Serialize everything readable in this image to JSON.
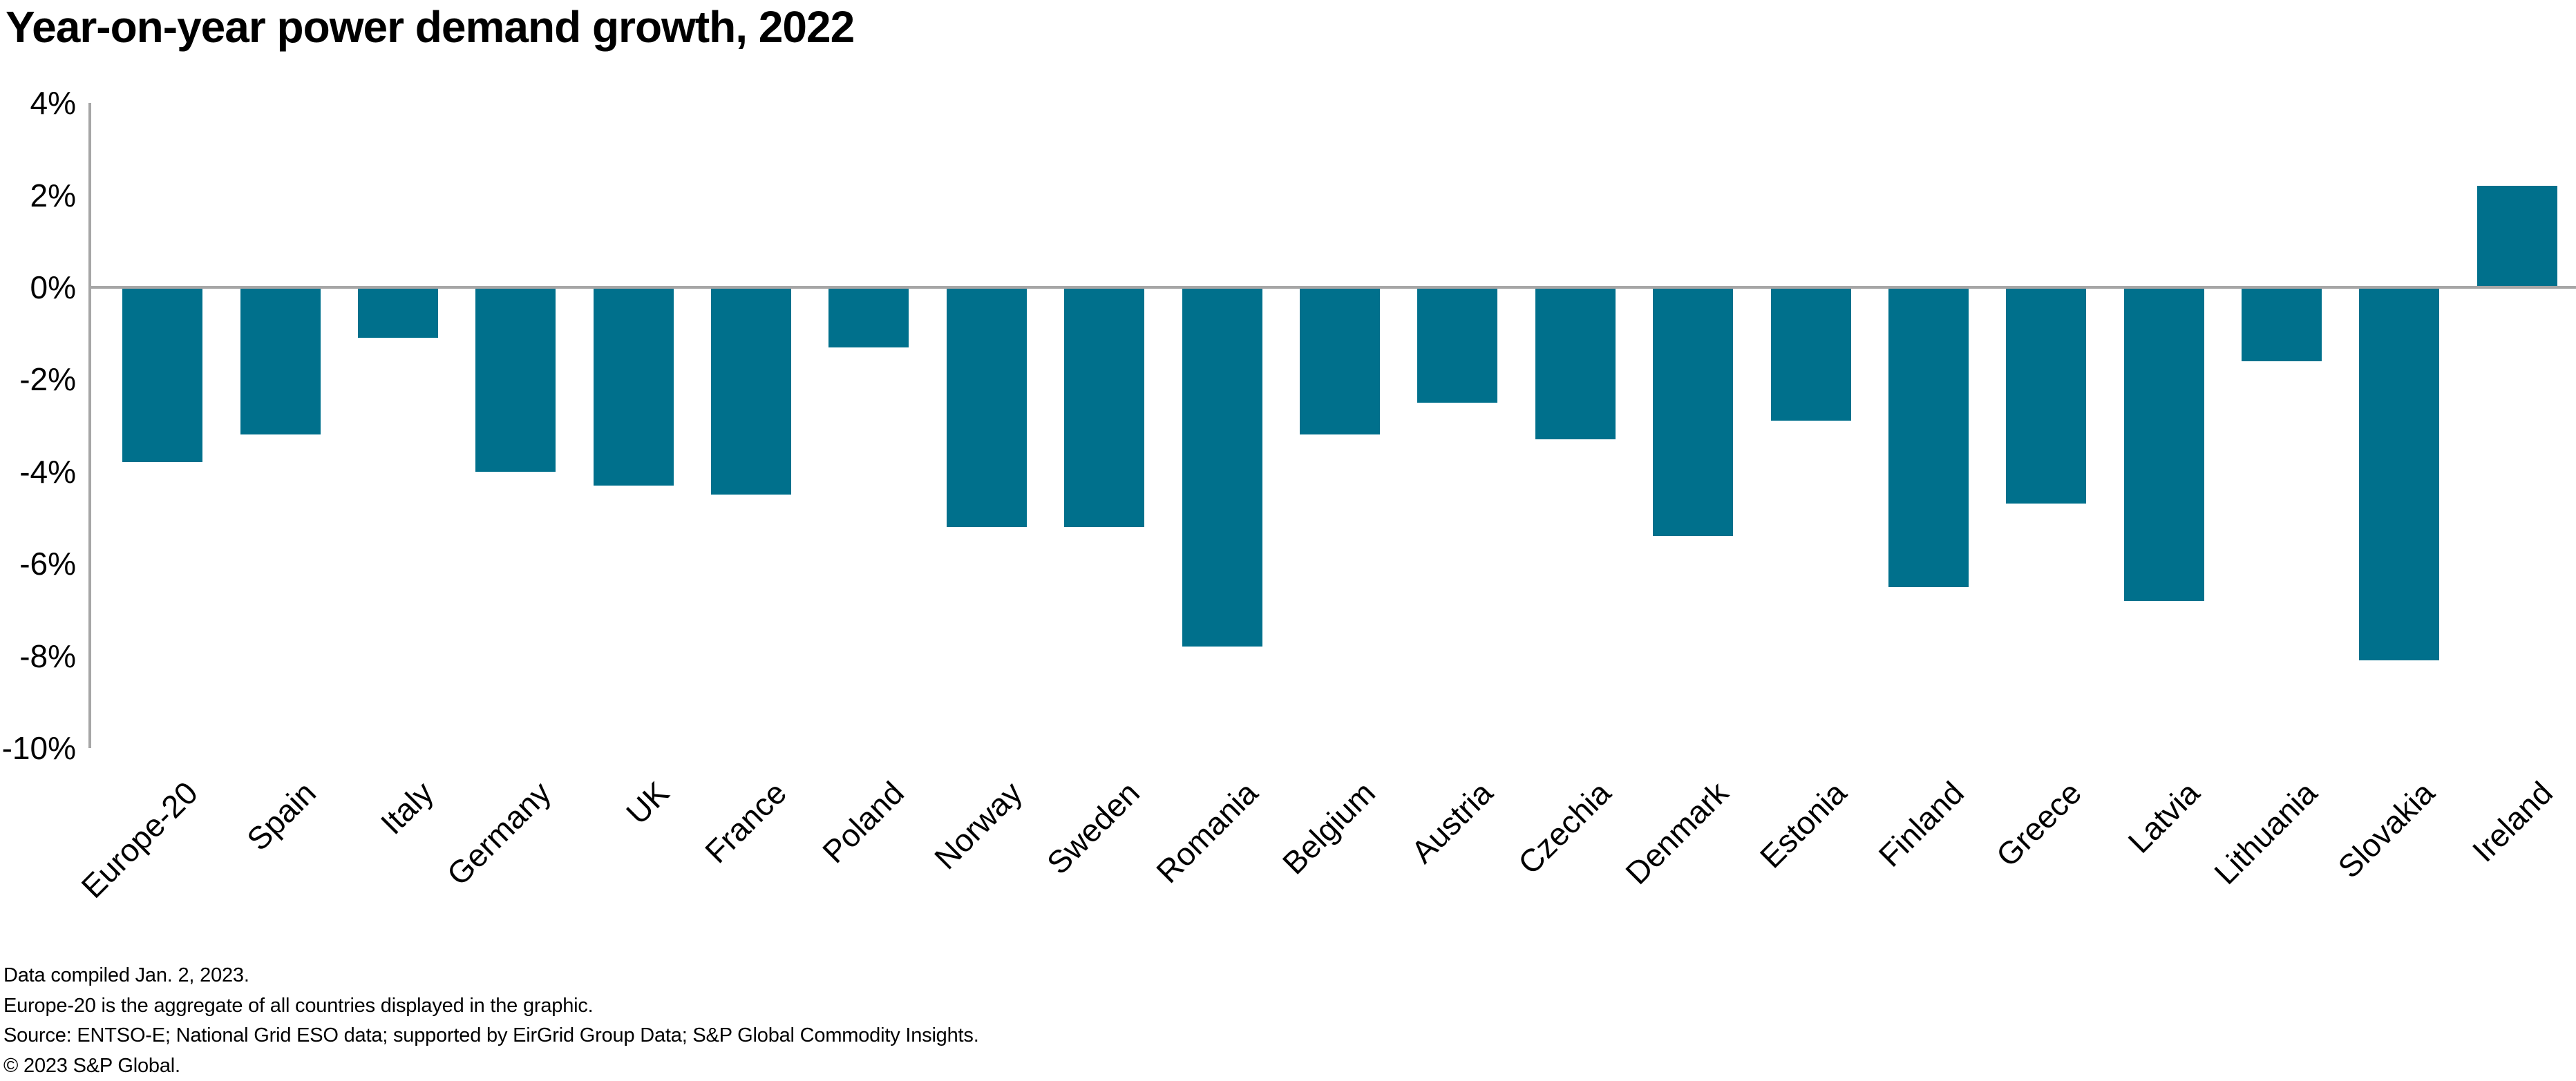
{
  "page": {
    "background": "#ffffff",
    "text_color": "#000000"
  },
  "chart_data": {
    "type": "bar",
    "title": "Year-on-year power demand growth, 2022",
    "categories": [
      "Europe-20",
      "Spain",
      "Italy",
      "Germany",
      "UK",
      "France",
      "Poland",
      "Norway",
      "Sweden",
      "Romania",
      "Belgium",
      "Austria",
      "Czechia",
      "Denmark",
      "Estonia",
      "Finland",
      "Greece",
      "Latvia",
      "Lithuania",
      "Slovakia",
      "Ireland"
    ],
    "values": [
      -3.8,
      -3.2,
      -1.1,
      -4.0,
      -4.3,
      -4.5,
      -1.3,
      -5.2,
      -5.2,
      -7.8,
      -3.2,
      -2.5,
      -3.3,
      -5.4,
      -2.9,
      -6.5,
      -4.7,
      -6.8,
      -1.6,
      -8.1,
      2.2
    ],
    "unit": "%",
    "xlabel": "",
    "ylabel": "",
    "ylim": [
      -10,
      4
    ],
    "y_ticks": [
      {
        "value": 4,
        "label": "4%"
      },
      {
        "value": 2,
        "label": "2%"
      },
      {
        "value": 0,
        "label": "0%"
      },
      {
        "value": -2,
        "label": "-2%"
      },
      {
        "value": -4,
        "label": "-4%"
      },
      {
        "value": -6,
        "label": "-6%"
      },
      {
        "value": -8,
        "label": "-8%"
      },
      {
        "value": -10,
        "label": "-10%"
      }
    ],
    "grid": "zero-line-only",
    "legend_position": "none",
    "x_label_rotation_deg": 45,
    "bar_color": "#00708C",
    "axis_color": "#a6a6a6"
  },
  "footer": {
    "lines": [
      "Data compiled Jan. 2, 2023.",
      "Europe-20 is the aggregate of all countries displayed in the graphic.",
      "Source: ENTSO-E; National Grid ESO data; supported by EirGrid Group Data; S&P Global Commodity Insights.",
      "© 2023 S&P Global."
    ]
  }
}
